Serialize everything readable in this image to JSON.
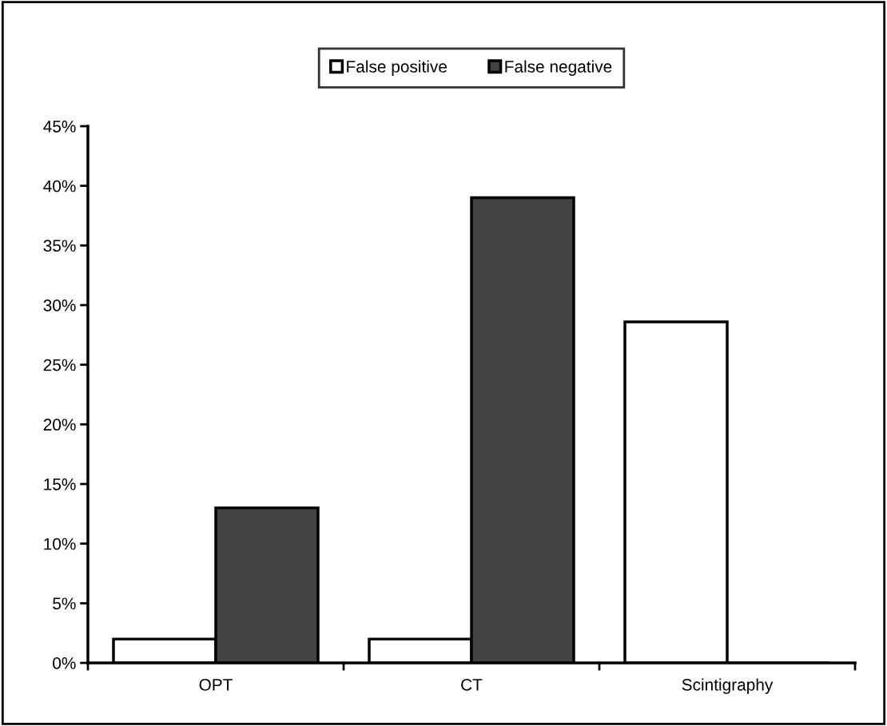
{
  "chart_data": {
    "type": "bar",
    "categories": [
      "OPT",
      "CT",
      "Scintigraphy"
    ],
    "series": [
      {
        "name": "False positive",
        "color": "#ffffff",
        "values": [
          2,
          2,
          28.6
        ]
      },
      {
        "name": "False negative",
        "color": "#434343",
        "values": [
          13,
          39,
          0
        ]
      }
    ],
    "ylim": [
      0,
      45
    ],
    "yticks": [
      {
        "value": 0,
        "label": "0%"
      },
      {
        "value": 5,
        "label": "5%"
      },
      {
        "value": 10,
        "label": "10%"
      },
      {
        "value": 15,
        "label": "15%"
      },
      {
        "value": 20,
        "label": "20%"
      },
      {
        "value": 25,
        "label": "25%"
      },
      {
        "value": 30,
        "label": "30%"
      },
      {
        "value": 35,
        "label": "35%"
      },
      {
        "value": 40,
        "label": "40%"
      },
      {
        "value": 45,
        "label": "45%"
      }
    ],
    "grid": false,
    "legend": "top"
  }
}
